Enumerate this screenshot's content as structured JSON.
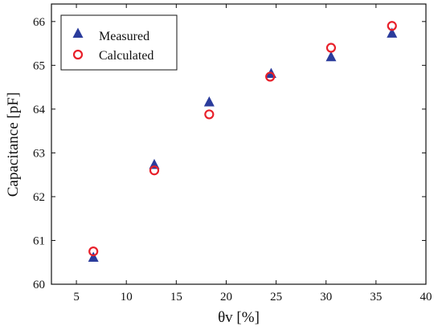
{
  "chart_data": {
    "type": "scatter",
    "xlabel": "θv [%]",
    "ylabel": "Capacitance [pF]",
    "xlim": [
      2.5,
      40
    ],
    "ylim": [
      60,
      66.4
    ],
    "x_ticks": [
      5,
      10,
      15,
      20,
      25,
      30,
      35,
      40
    ],
    "y_ticks": [
      60,
      61,
      62,
      63,
      64,
      65,
      66
    ],
    "grid": false,
    "legend_position": "top-left",
    "series": [
      {
        "name": "Measured",
        "marker": "triangle",
        "color": "#2b3c9c",
        "x": [
          6.7,
          12.8,
          18.3,
          24.5,
          30.5,
          36.6
        ],
        "y": [
          60.6,
          62.72,
          64.15,
          64.8,
          65.18,
          65.72
        ]
      },
      {
        "name": "Calculated",
        "marker": "circle-open",
        "color": "#e8202a",
        "x": [
          6.7,
          12.8,
          18.3,
          24.4,
          30.5,
          36.6
        ],
        "y": [
          60.75,
          62.6,
          63.88,
          64.74,
          65.4,
          65.9
        ]
      }
    ]
  }
}
